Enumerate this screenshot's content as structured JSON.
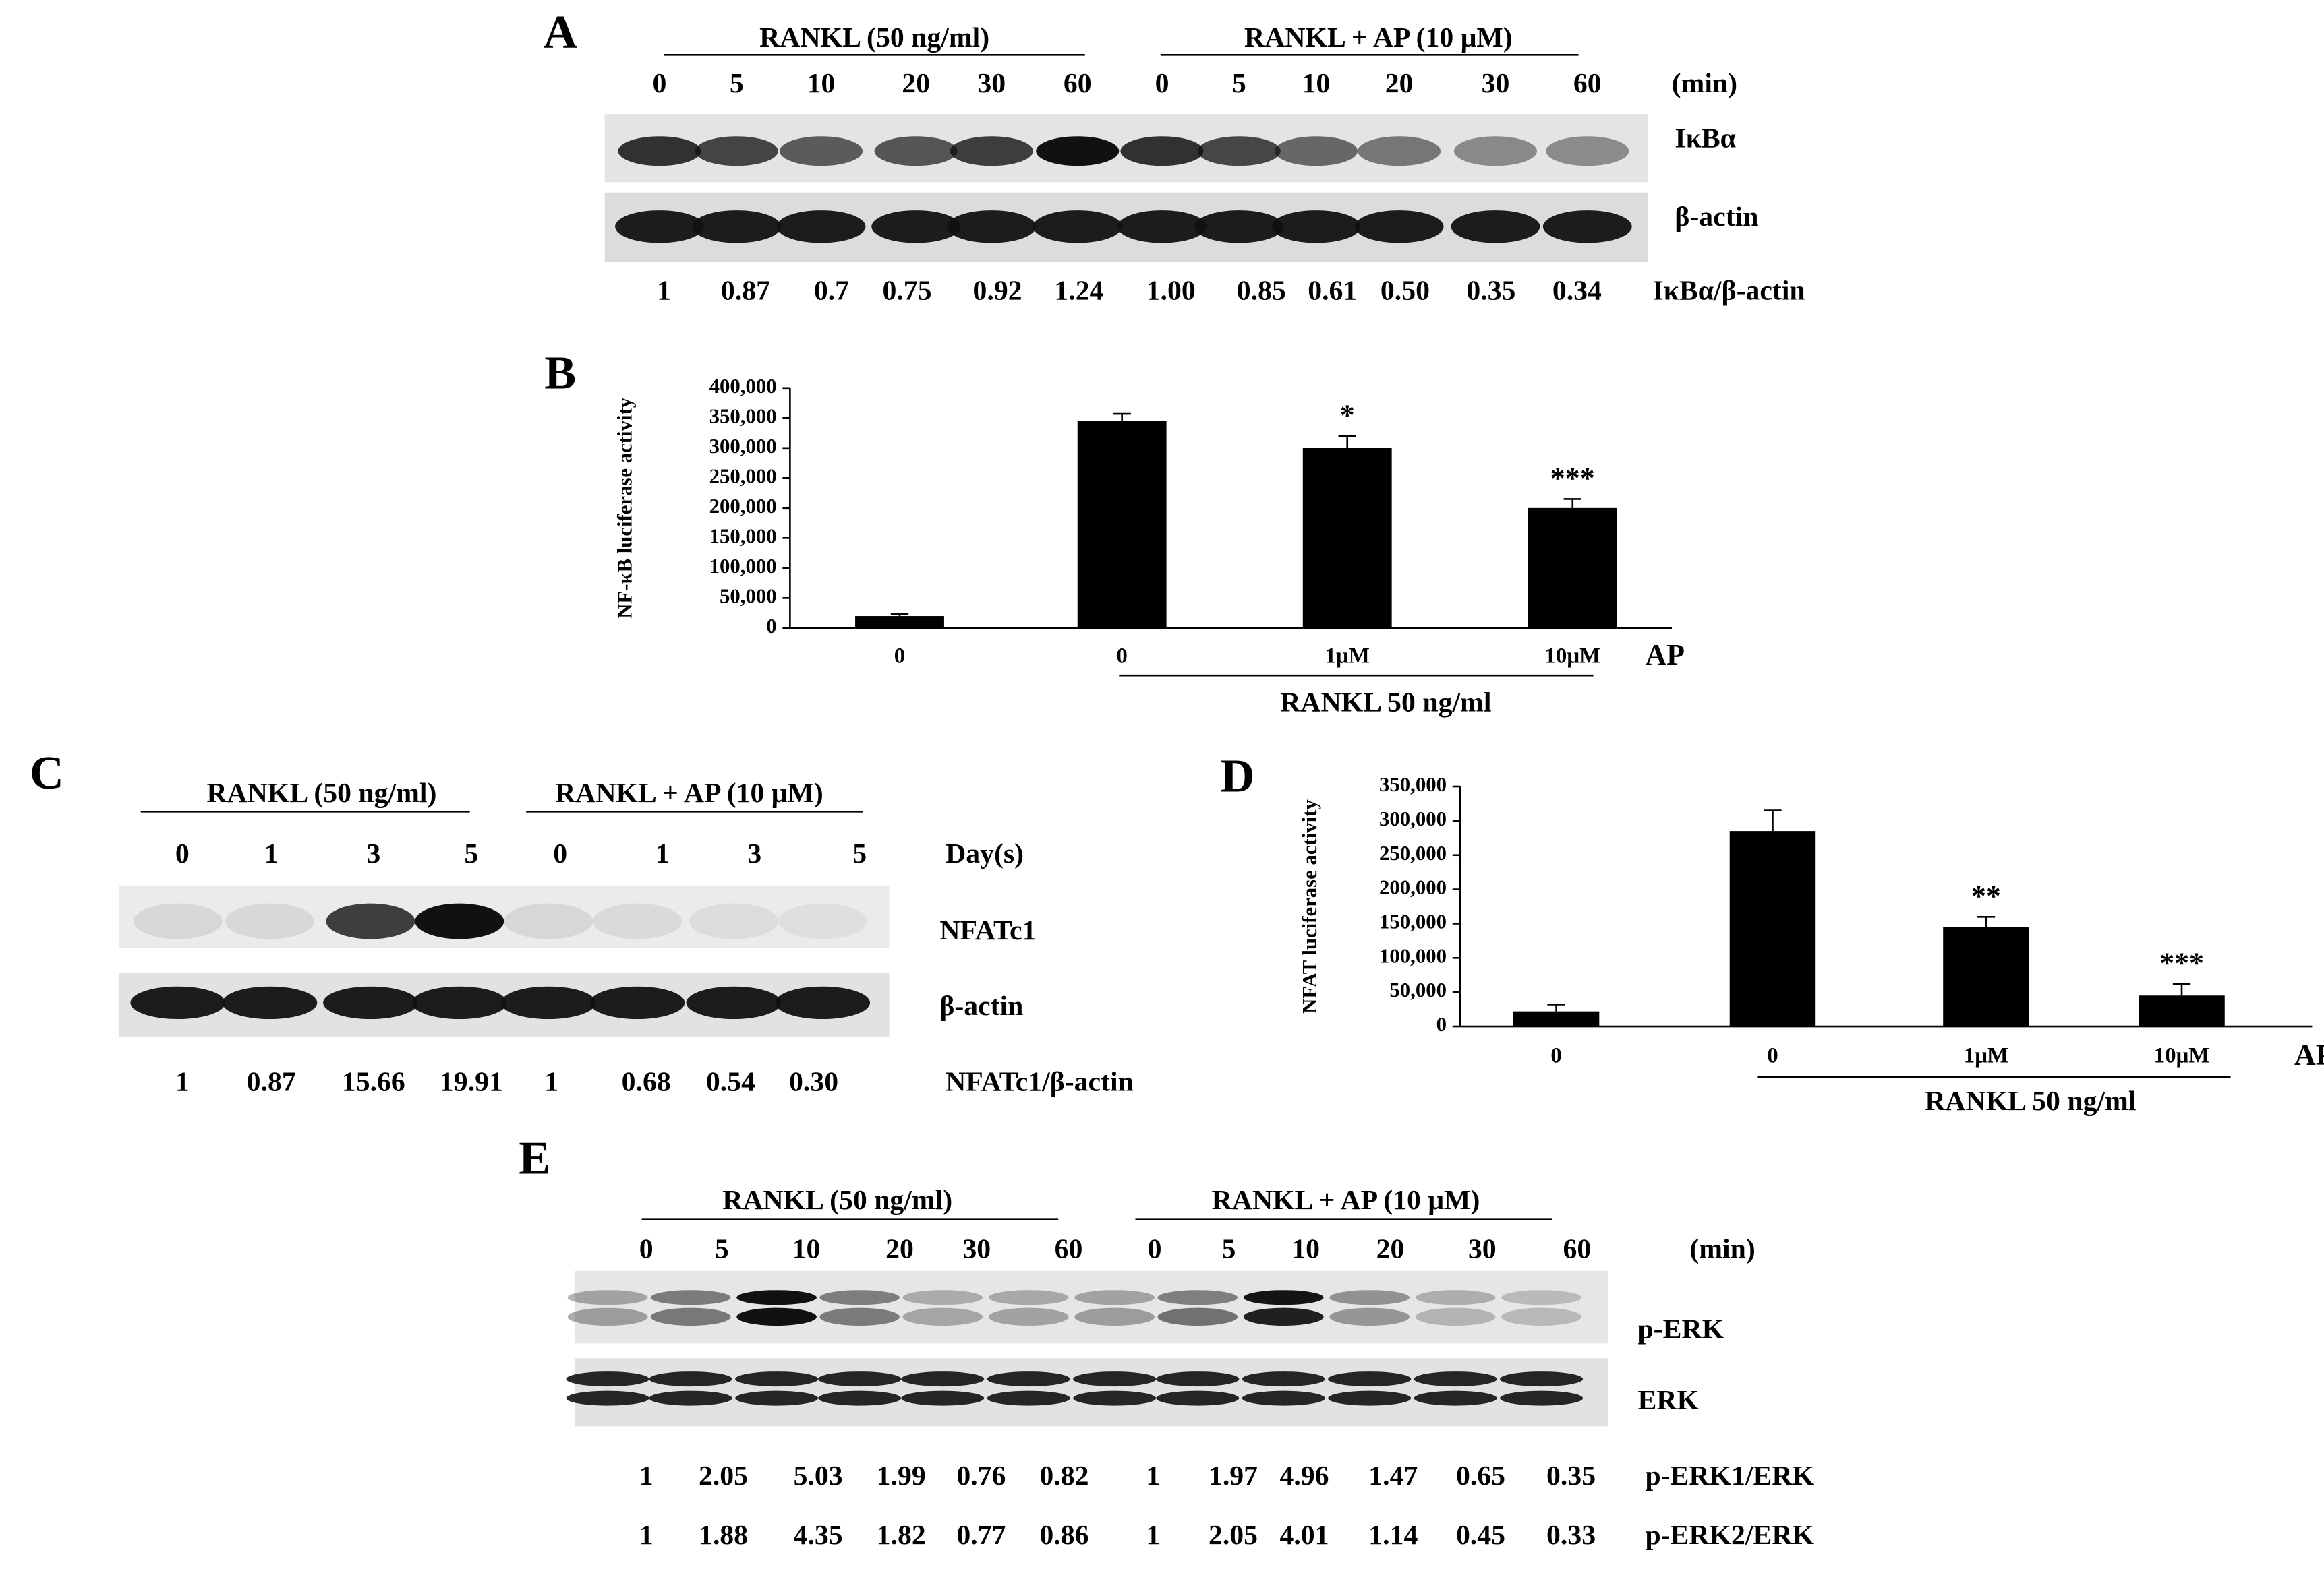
{
  "panel_a": {
    "label": "A",
    "groups": [
      "RANKL (50 ng/ml)",
      "RANKL + AP (10 μM)"
    ],
    "times": [
      0,
      5,
      10,
      20,
      30,
      60,
      0,
      5,
      10,
      20,
      30,
      60
    ],
    "time_unit": "(min)",
    "blots": [
      "IκBα",
      "β-actin"
    ],
    "ratio_name": "IκBα/β-actin",
    "ratios": [
      1,
      0.87,
      0.7,
      0.75,
      0.92,
      1.24,
      {
        "value": 1,
        "label": "1.00"
      },
      0.85,
      0.61,
      {
        "value": 0.5,
        "label": "0.50"
      },
      0.35,
      0.34
    ]
  },
  "chart_data": [
    {
      "type": "bar",
      "panel_label": "B",
      "ylabel": "NF-κB luciferase activity",
      "categories": [
        "0",
        "0",
        "1μM",
        "10μM"
      ],
      "values": [
        20000,
        345000,
        300000,
        200000
      ],
      "errors": [
        3000,
        12000,
        20000,
        15000
      ],
      "significance": [
        null,
        null,
        "*",
        "***"
      ],
      "treatment": "AP",
      "group_label": "RANKL 50 ng/ml",
      "color": "#000000",
      "ylim": [
        0,
        400000
      ],
      "yticks": [
        0,
        {
          "value": 50000,
          "label": "50,000"
        },
        {
          "value": 100000,
          "label": "100,000"
        },
        {
          "value": 150000,
          "label": "150,000"
        },
        {
          "value": 200000,
          "label": "200,000"
        },
        {
          "value": 250000,
          "label": "250,000"
        },
        {
          "value": 300000,
          "label": "300,000"
        },
        {
          "value": 350000,
          "label": "350,000"
        },
        {
          "value": 400000,
          "label": "400,000"
        }
      ]
    },
    {
      "type": "bar",
      "panel_label": "D",
      "ylabel": "NFAT luciferase activity",
      "categories": [
        "0",
        "0",
        "1μM",
        "10μM"
      ],
      "values": [
        22000,
        285000,
        145000,
        45000
      ],
      "errors": [
        10000,
        30000,
        15000,
        17000
      ],
      "significance": [
        null,
        null,
        "**",
        "***"
      ],
      "treatment": "AP",
      "group_label": "RANKL 50 ng/ml",
      "color": "#000000",
      "ylim": [
        0,
        350000
      ],
      "yticks": [
        0,
        {
          "value": 50000,
          "label": "50,000"
        },
        {
          "value": 100000,
          "label": "100,000"
        },
        {
          "value": 150000,
          "label": "150,000"
        },
        {
          "value": 200000,
          "label": "200,000"
        },
        {
          "value": 250000,
          "label": "250,000"
        },
        {
          "value": 300000,
          "label": "300,000"
        },
        {
          "value": 350000,
          "label": "350,000"
        }
      ]
    }
  ],
  "panel_c": {
    "label": "C",
    "groups": [
      "RANKL (50 ng/ml)",
      "RANKL + AP (10 μM)"
    ],
    "days": [
      0,
      1,
      3,
      5,
      0,
      1,
      3,
      5
    ],
    "day_unit": "Day(s)",
    "blots": [
      "NFATc1",
      "β-actin"
    ],
    "ratio_name": "NFATc1/β-actin",
    "ratios": [
      1,
      0.87,
      15.66,
      19.91,
      1,
      0.68,
      0.54,
      {
        "value": 0.3,
        "label": "0.30"
      }
    ]
  },
  "panel_e": {
    "label": "E",
    "groups": [
      "RANKL (50 ng/ml)",
      "RANKL + AP (10 μM)"
    ],
    "times": [
      0,
      5,
      10,
      20,
      30,
      60,
      0,
      5,
      10,
      20,
      30,
      60
    ],
    "time_unit": "(min)",
    "blots": [
      "p-ERK",
      "ERK"
    ],
    "ratio_rows": [
      {
        "name": "p-ERK1/ERK",
        "values": [
          1,
          2.05,
          5.03,
          1.99,
          0.76,
          0.82,
          1,
          1.97,
          4.96,
          1.47,
          0.65,
          0.35
        ]
      },
      {
        "name": "p-ERK2/ERK",
        "values": [
          1,
          1.88,
          4.35,
          1.82,
          0.77,
          0.86,
          1,
          2.05,
          4.01,
          1.14,
          0.45,
          0.33
        ]
      }
    ]
  }
}
